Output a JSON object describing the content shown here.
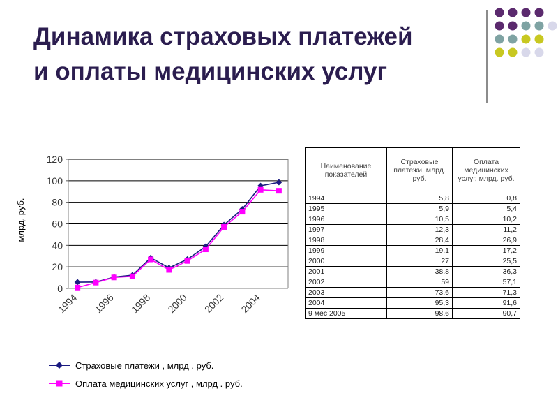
{
  "title": {
    "line1": "Динамика страховых платежей",
    "line2": "и оплаты медицинских услуг"
  },
  "colors": {
    "title": "#2b1d4f",
    "series_insurance": "#1a1a80",
    "series_medical": "#ff00ff",
    "dot_purple": "#5b2a6e",
    "dot_teal": "#7fa3a3",
    "dot_olive": "#c8c821",
    "dot_lavender": "#d8d8ea"
  },
  "decoration": {
    "dot_grid": [
      [
        "purple",
        "purple",
        "purple",
        "purple"
      ],
      [
        "purple",
        "purple",
        "teal",
        "teal",
        "lavender"
      ],
      [
        "teal",
        "teal",
        "olive",
        "olive"
      ],
      [
        "olive",
        "olive",
        "lavender",
        "lavender"
      ]
    ]
  },
  "chart_data": {
    "type": "line",
    "ylabel": "млрд. руб.",
    "ylim": [
      0,
      120
    ],
    "yticks": [
      0,
      20,
      40,
      60,
      80,
      100,
      120
    ],
    "xticklabels": [
      "1994",
      "1996",
      "1998",
      "2000",
      "2002",
      "2004"
    ],
    "grid": true,
    "legend_position": "bottom",
    "categories": [
      "1994",
      "1995",
      "1996",
      "1997",
      "1998",
      "1999",
      "2000",
      "2001",
      "2002",
      "2003",
      "2004",
      "9 мес 2005"
    ],
    "series": [
      {
        "name": "Страховые платежи , млрд . руб.",
        "marker": "diamond",
        "values": [
          5.8,
          5.9,
          10.5,
          12.3,
          28.4,
          19.1,
          27,
          38.8,
          59,
          73.6,
          95.3,
          98.6
        ]
      },
      {
        "name": "Оплата медицинских услуг , млрд . руб.",
        "marker": "square",
        "values": [
          0.8,
          5.4,
          10.2,
          11.2,
          26.9,
          17.2,
          25.5,
          36.3,
          57.1,
          71.3,
          91.6,
          90.7
        ]
      }
    ]
  },
  "table": {
    "headers": [
      "Наименование показателей",
      "Страховые платежи, млрд. руб.",
      "Оплата медицинских услуг, млрд. руб."
    ],
    "rows": [
      [
        "1994",
        "5,8",
        "0,8"
      ],
      [
        "1995",
        "5,9",
        "5,4"
      ],
      [
        "1996",
        "10,5",
        "10,2"
      ],
      [
        "1997",
        "12,3",
        "11,2"
      ],
      [
        "1998",
        "28,4",
        "26,9"
      ],
      [
        "1999",
        "19,1",
        "17,2"
      ],
      [
        "2000",
        "27",
        "25,5"
      ],
      [
        "2001",
        "38,8",
        "36,3"
      ],
      [
        "2002",
        "59",
        "57,1"
      ],
      [
        "2003",
        "73,6",
        "71,3"
      ],
      [
        "2004",
        "95,3",
        "91,6"
      ],
      [
        "9 мес 2005",
        "98,6",
        "90,7"
      ]
    ]
  }
}
